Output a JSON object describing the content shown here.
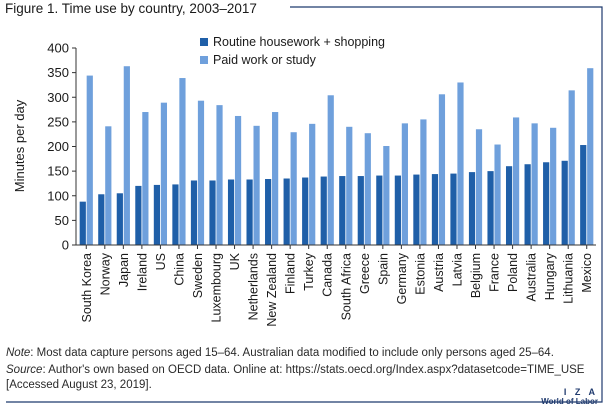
{
  "figure": {
    "title": "Figure 1. Time use by country, 2003–2017",
    "note_label": "Note",
    "note_text": ": Most data capture persons aged 15–64. Australian data modified to include only persons aged 25–64.",
    "source_label": "Source",
    "source_text": ": Author's own based on OECD data. Online at: https://stats.oecd.org/Index.aspx?datasetcode=TIME_USE",
    "source_text2": "[Accessed August 23, 2019].",
    "brand": {
      "word": "I Z A",
      "sub": "World of Labor"
    }
  },
  "colors": {
    "series1": "#1f5fa8",
    "series2": "#6fa0dc",
    "frame": "#1f3a6e",
    "axis": "#333333"
  },
  "chart_data": {
    "type": "bar",
    "title": "Figure 1. Time use by country, 2003–2017",
    "ylabel": "Minutes per day",
    "xlabel": "",
    "ylim": [
      0,
      400
    ],
    "yticks": [
      0,
      50,
      100,
      150,
      200,
      250,
      300,
      350,
      400
    ],
    "grid": false,
    "legend_position": "top-center",
    "categories": [
      "South Korea",
      "Norway",
      "Japan",
      "Ireland",
      "US",
      "China",
      "Sweden",
      "Luxembourg",
      "UK",
      "Netherlands",
      "New Zealand",
      "Finland",
      "Turkey",
      "Canada",
      "South Africa",
      "Greece",
      "Spain",
      "Germany",
      "Estonia",
      "Austria",
      "Latvia",
      "Belgium",
      "France",
      "Poland",
      "Australia",
      "Hungary",
      "Lithuania",
      "Mexico"
    ],
    "series": [
      {
        "name": "Routine housework + shopping",
        "color": "#1f5fa8",
        "values": [
          88,
          103,
          105,
          120,
          122,
          123,
          131,
          131,
          133,
          133,
          134,
          135,
          137,
          139,
          140,
          140,
          141,
          141,
          143,
          144,
          145,
          148,
          150,
          160,
          164,
          168,
          171,
          203
        ]
      },
      {
        "name": "Paid work or study",
        "color": "#6fa0dc",
        "values": [
          344,
          241,
          363,
          270,
          289,
          339,
          293,
          284,
          262,
          242,
          270,
          229,
          246,
          304,
          240,
          227,
          201,
          247,
          255,
          306,
          330,
          235,
          204,
          259,
          247,
          238,
          314,
          359
        ]
      }
    ]
  }
}
